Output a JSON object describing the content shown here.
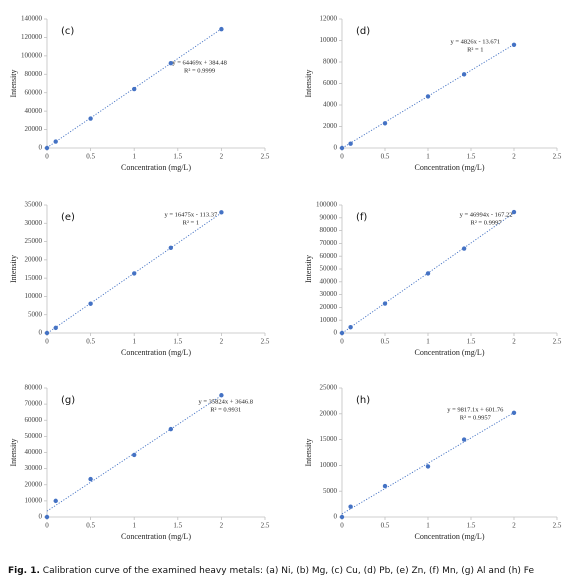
{
  "chart_data": [
    {
      "type": "scatter",
      "panel": "(c)",
      "x": [
        0,
        0.1,
        0.5,
        1,
        1.42,
        2
      ],
      "values": [
        0,
        7000,
        32000,
        64000,
        92000,
        129000
      ],
      "equation": "y = 64469x + 384.48",
      "r2": "R² = 0.9999",
      "trend": {
        "slope": 64469,
        "intercept": 384.48
      },
      "xlabel": "Concentration (mg/L)",
      "ylabel": "Intensity",
      "color": "#4472c4",
      "xlim": [
        0,
        2.5
      ],
      "xticks": [
        0,
        0.5,
        1,
        1.5,
        2,
        2.5
      ],
      "ylim": [
        0,
        140000
      ],
      "yticks": [
        0,
        20000,
        40000,
        60000,
        80000,
        100000,
        120000,
        140000
      ]
    },
    {
      "type": "scatter",
      "panel": "(d)",
      "x": [
        0,
        0.1,
        0.5,
        1,
        1.42,
        2
      ],
      "values": [
        0,
        400,
        2300,
        4800,
        6850,
        9600
      ],
      "equation": "y = 4826x - 13.671",
      "r2": "R² = 1",
      "trend": {
        "slope": 4826,
        "intercept": -13.671
      },
      "xlabel": "Concentration (mg/L)",
      "ylabel": "Intensity",
      "color": "#4472c4",
      "xlim": [
        0,
        2.5
      ],
      "xticks": [
        0,
        0.5,
        1,
        1.5,
        2,
        2.5
      ],
      "ylim": [
        0,
        12000
      ],
      "yticks": [
        0,
        2000,
        4000,
        6000,
        8000,
        10000,
        12000
      ]
    },
    {
      "type": "scatter",
      "panel": "(e)",
      "x": [
        0,
        0.1,
        0.5,
        1,
        1.42,
        2
      ],
      "values": [
        0,
        1400,
        8000,
        16300,
        23300,
        33000
      ],
      "equation": "y = 16475x - 113.37",
      "r2": "R² = 1",
      "trend": {
        "slope": 16475,
        "intercept": -113.37
      },
      "xlabel": "Concentration (mg/L)",
      "ylabel": "Intensity",
      "color": "#4472c4",
      "xlim": [
        0,
        2.5
      ],
      "xticks": [
        0,
        0.5,
        1,
        1.5,
        2,
        2.5
      ],
      "ylim": [
        0,
        35000
      ],
      "yticks": [
        0,
        5000,
        10000,
        15000,
        20000,
        25000,
        30000,
        35000
      ]
    },
    {
      "type": "scatter",
      "panel": "(f)",
      "x": [
        0,
        0.1,
        0.5,
        1,
        1.42,
        2
      ],
      "values": [
        0,
        4500,
        23000,
        46500,
        66000,
        94500
      ],
      "equation": "y = 46994x - 167.22",
      "r2": "R² = 0.9997",
      "trend": {
        "slope": 46994,
        "intercept": -167.22
      },
      "xlabel": "Concentration (mg/L)",
      "ylabel": "Intensity",
      "color": "#4472c4",
      "xlim": [
        0,
        2.5
      ],
      "xticks": [
        0,
        0.5,
        1,
        1.5,
        2,
        2.5
      ],
      "ylim": [
        0,
        100000
      ],
      "yticks": [
        0,
        10000,
        20000,
        30000,
        40000,
        50000,
        60000,
        70000,
        80000,
        90000,
        100000
      ]
    },
    {
      "type": "scatter",
      "panel": "(g)",
      "x": [
        0,
        0.1,
        0.5,
        1,
        1.42,
        2
      ],
      "values": [
        0,
        10000,
        23500,
        38500,
        54500,
        75500
      ],
      "equation": "y = 35824x + 3646.8",
      "r2": "R² = 0.9931",
      "trend": {
        "slope": 35824,
        "intercept": 3646.8
      },
      "xlabel": "Concentration (mg/L)",
      "ylabel": "Intensity",
      "color": "#4472c4",
      "xlim": [
        0,
        2.5
      ],
      "xticks": [
        0,
        0.5,
        1,
        1.5,
        2,
        2.5
      ],
      "ylim": [
        0,
        80000
      ],
      "yticks": [
        0,
        10000,
        20000,
        30000,
        40000,
        50000,
        60000,
        70000,
        80000
      ]
    },
    {
      "type": "scatter",
      "panel": "(h)",
      "x": [
        0,
        0.1,
        0.5,
        1,
        1.42,
        2
      ],
      "values": [
        0,
        2000,
        6000,
        9800,
        15000,
        20200
      ],
      "equation": "y = 9817.1x + 601.76",
      "r2": "R² = 0.9957",
      "trend": {
        "slope": 9817.1,
        "intercept": 601.76
      },
      "xlabel": "Concentration (mg/L)",
      "ylabel": "Intensity",
      "color": "#4472c4",
      "xlim": [
        0,
        2.5
      ],
      "xticks": [
        0,
        0.5,
        1,
        1.5,
        2,
        2.5
      ],
      "ylim": [
        0,
        25000
      ],
      "yticks": [
        0,
        5000,
        10000,
        15000,
        20000,
        25000
      ]
    }
  ],
  "caption": {
    "label": "Fig. 1.",
    "text": "Calibration curve of the examined heavy metals: (a) Ni, (b) Mg, (c) Cu, (d) Pb, (e) Zn, (f) Mn, (g) Al and (h) Fe"
  }
}
